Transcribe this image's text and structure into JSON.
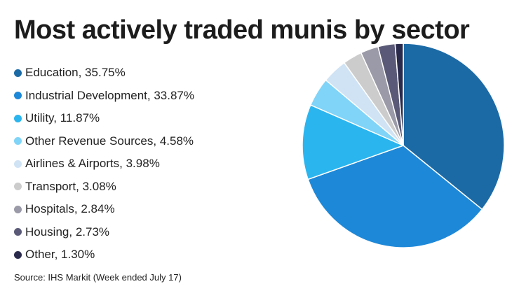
{
  "chart_data": {
    "type": "pie",
    "title": "Most actively traded munis by sector",
    "source": "Source: IHS Markit (Week ended July 17)",
    "slices": [
      {
        "label": "Education",
        "display": "Education, 35.75%",
        "value": 35.75,
        "color": "#1b6aa6"
      },
      {
        "label": "Industrial Development",
        "display": "Industrial Development, 33.87%",
        "value": 33.87,
        "color": "#1e88d8"
      },
      {
        "label": "Utility",
        "display": "Utility, 11.87%",
        "value": 11.87,
        "color": "#2bb5ef"
      },
      {
        "label": "Other Revenue Sources",
        "display": "Other Revenue Sources, 4.58%",
        "value": 4.58,
        "color": "#7fd4f8"
      },
      {
        "label": "Airlines & Airports",
        "display": "Airlines & Airports, 3.98%",
        "value": 3.98,
        "color": "#cfe3f5"
      },
      {
        "label": "Transport",
        "display": "Transport, 3.08%",
        "value": 3.08,
        "color": "#cccccc"
      },
      {
        "label": "Hospitals",
        "display": "Hospitals, 2.84%",
        "value": 2.84,
        "color": "#9a9aa8"
      },
      {
        "label": "Housing",
        "display": "Housing, 2.73%",
        "value": 2.73,
        "color": "#5a5a78"
      },
      {
        "label": "Other",
        "display": "Other, 1.30%",
        "value": 1.3,
        "color": "#2a2a4c"
      }
    ],
    "legend_placement": "left",
    "start_angle": "12 o'clock",
    "direction": "clockwise"
  }
}
